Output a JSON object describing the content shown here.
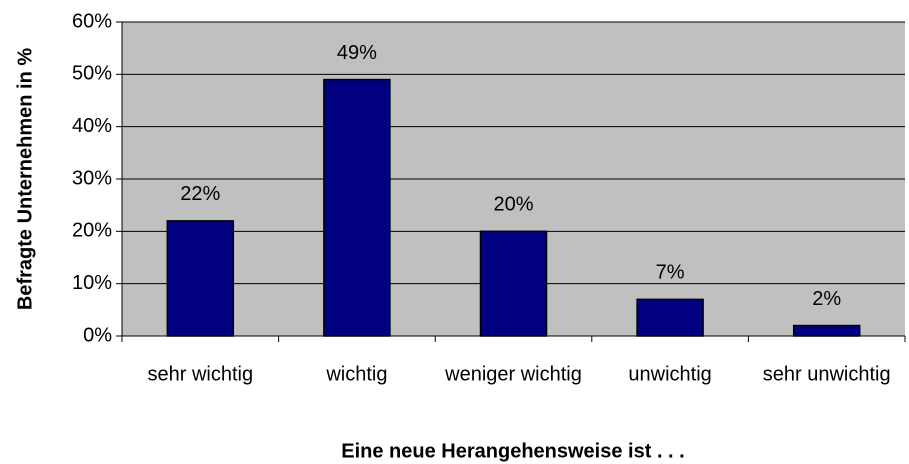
{
  "chart_data": {
    "type": "bar",
    "xlabel": "Eine neue Herangehensweise ist . . .",
    "ylabel": "Befragte Unternehmen in %",
    "categories": [
      "sehr wichtig",
      "wichtig",
      "weniger wichtig",
      "unwichtig",
      "sehr unwichtig"
    ],
    "values": [
      22,
      49,
      20,
      7,
      2
    ],
    "value_labels": [
      "22%",
      "49%",
      "20%",
      "7%",
      "2%"
    ],
    "color": "#000080",
    "ylim": [
      0,
      60
    ],
    "yticks": [
      {
        "value": 0,
        "label": "0%"
      },
      {
        "value": 10,
        "label": "10%"
      },
      {
        "value": 20,
        "label": "20%"
      },
      {
        "value": 30,
        "label": "30%"
      },
      {
        "value": 40,
        "label": "40%"
      },
      {
        "value": 50,
        "label": "50%"
      },
      {
        "value": 60,
        "label": "60%"
      }
    ],
    "grid": true
  }
}
